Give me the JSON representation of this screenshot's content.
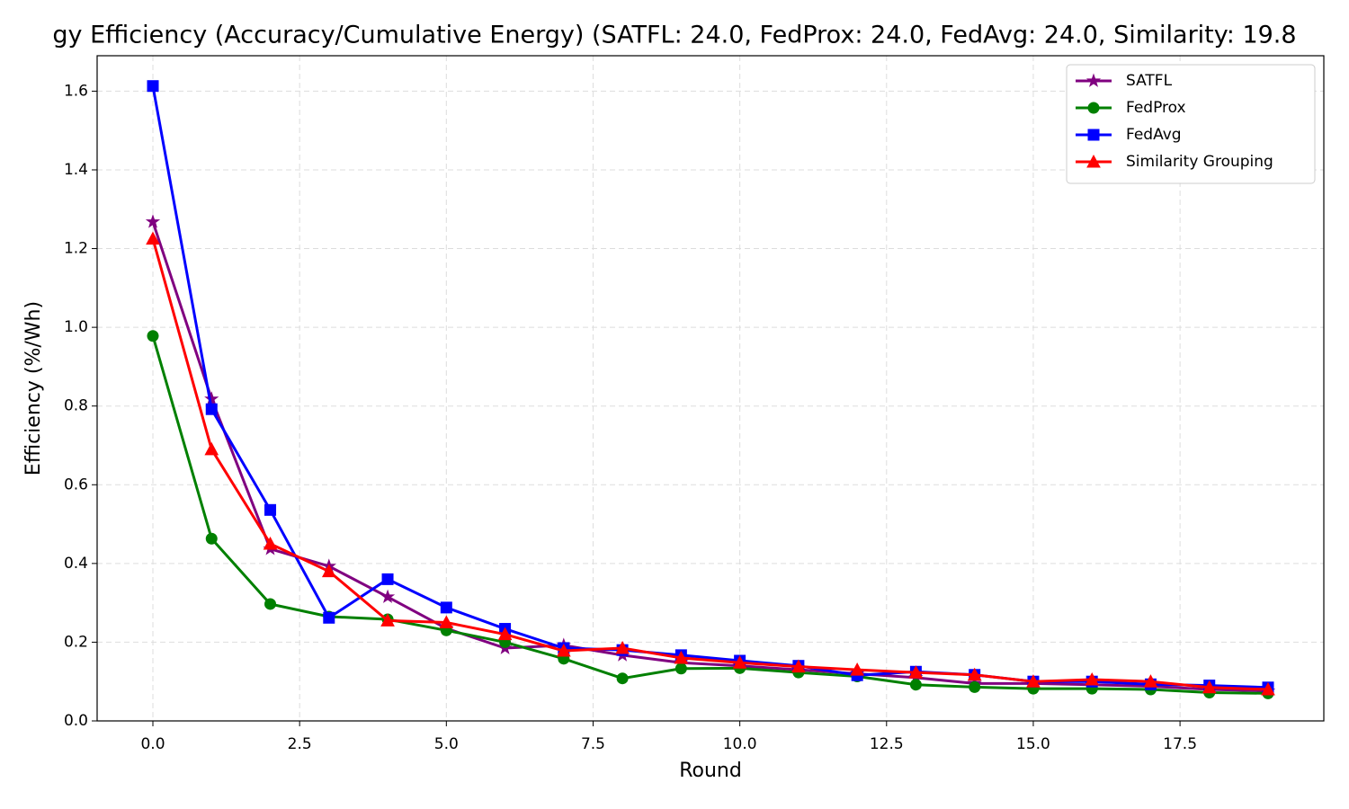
{
  "chart_data": {
    "type": "line",
    "title": "gy Efficiency (Accuracy/Cumulative Energy) (SATFL: 24.0, FedProx: 24.0, FedAvg: 24.0, Similarity: 19.8",
    "x_label": "Round",
    "y_label": "Efficiency (%/Wh)",
    "x": [
      0,
      1,
      2,
      3,
      4,
      5,
      6,
      7,
      8,
      9,
      10,
      11,
      12,
      13,
      14,
      15,
      16,
      17,
      18,
      19
    ],
    "series": [
      {
        "name": "SATFL",
        "color": "#800080",
        "marker": "star",
        "values": [
          1.268,
          0.818,
          0.437,
          0.393,
          0.315,
          0.235,
          0.185,
          0.192,
          0.167,
          0.148,
          0.14,
          0.13,
          0.12,
          0.11,
          0.095,
          0.095,
          0.092,
          0.088,
          0.08,
          0.076
        ]
      },
      {
        "name": "FedProx",
        "color": "#008000",
        "marker": "circle",
        "values": [
          0.978,
          0.463,
          0.297,
          0.265,
          0.258,
          0.23,
          0.2,
          0.158,
          0.108,
          0.133,
          0.134,
          0.123,
          0.113,
          0.092,
          0.086,
          0.082,
          0.082,
          0.08,
          0.072,
          0.07
        ]
      },
      {
        "name": "FedAvg",
        "color": "#0000ff",
        "marker": "square",
        "values": [
          1.613,
          0.792,
          0.536,
          0.262,
          0.36,
          0.288,
          0.234,
          0.185,
          0.18,
          0.167,
          0.153,
          0.14,
          0.116,
          0.125,
          0.117,
          0.1,
          0.1,
          0.093,
          0.09,
          0.085
        ]
      },
      {
        "name": "Similarity Grouping",
        "color": "#ff0000",
        "marker": "triangle",
        "values": [
          1.225,
          0.69,
          0.45,
          0.38,
          0.255,
          0.25,
          0.22,
          0.178,
          0.185,
          0.16,
          0.148,
          0.138,
          0.13,
          0.123,
          0.117,
          0.1,
          0.105,
          0.1,
          0.085,
          0.08
        ]
      }
    ],
    "xlim": [
      -0.95,
      19.95
    ],
    "ylim": [
      0,
      1.69
    ],
    "xticks": [
      {
        "value": 0,
        "label": "0.0"
      },
      2.5,
      {
        "value": 5,
        "label": "5.0"
      },
      7.5,
      {
        "value": 10,
        "label": "10.0"
      },
      12.5,
      {
        "value": 15,
        "label": "15.0"
      },
      17.5
    ],
    "yticks": [
      {
        "value": 0,
        "label": "0.0"
      },
      0.2,
      0.4,
      0.6,
      0.8,
      {
        "value": 1,
        "label": "1.0"
      },
      1.2,
      1.4,
      1.6
    ],
    "grid": true,
    "legend": "upper right"
  }
}
